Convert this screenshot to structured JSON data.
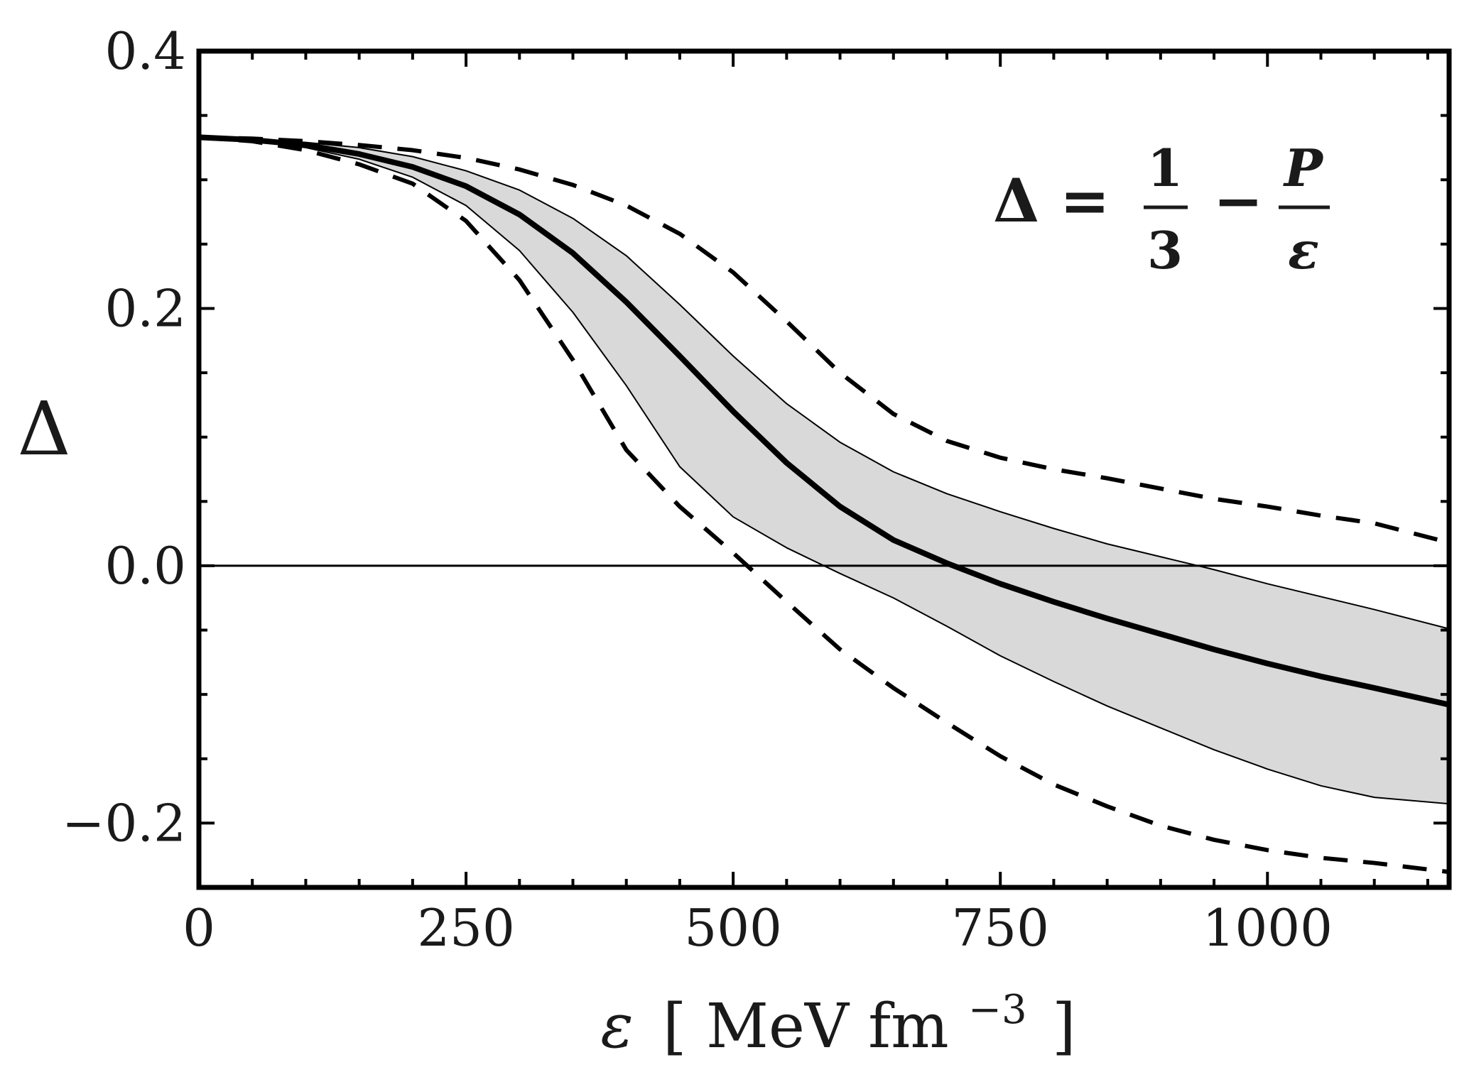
{
  "chart_data": {
    "type": "line",
    "title": "",
    "xlabel": {
      "symbol": "ε",
      "open": "[",
      "unit": "MeV fm",
      "exp": "−3",
      "close": "]"
    },
    "ylabel": "Δ",
    "xlim": [
      0,
      1170
    ],
    "ylim": [
      -0.25,
      0.4
    ],
    "x_ticks": [
      0,
      250,
      500,
      750,
      1000
    ],
    "x_tick_labels": [
      "0",
      "250",
      "500",
      "750",
      "1000"
    ],
    "y_ticks": [
      -0.2,
      0.0,
      0.2,
      0.4
    ],
    "y_tick_labels": [
      "−0.2",
      "0.0",
      "0.2",
      "0.4"
    ],
    "annotation": {
      "lhs": "Δ",
      "eq": "=",
      "num1": "1",
      "den1": "3",
      "minus": "−",
      "num2": "P",
      "den2": "ε"
    },
    "x": [
      0,
      50,
      100,
      150,
      200,
      250,
      300,
      350,
      400,
      450,
      500,
      550,
      600,
      650,
      700,
      750,
      800,
      850,
      900,
      950,
      1000,
      1050,
      1100,
      1170
    ],
    "series": [
      {
        "name": "central",
        "style": "solid-thick",
        "values": [
          0.333,
          0.331,
          0.327,
          0.32,
          0.31,
          0.295,
          0.273,
          0.243,
          0.205,
          0.163,
          0.12,
          0.08,
          0.046,
          0.02,
          0.002,
          -0.014,
          -0.028,
          -0.041,
          -0.053,
          -0.065,
          -0.076,
          -0.086,
          -0.095,
          -0.108
        ]
      },
      {
        "name": "band-upper",
        "style": "thin",
        "values": [
          0.333,
          0.332,
          0.329,
          0.325,
          0.318,
          0.307,
          0.292,
          0.27,
          0.241,
          0.203,
          0.163,
          0.126,
          0.096,
          0.073,
          0.056,
          0.042,
          0.029,
          0.017,
          0.007,
          -0.003,
          -0.014,
          -0.024,
          -0.034,
          -0.049
        ]
      },
      {
        "name": "band-lower",
        "style": "thin",
        "values": [
          0.333,
          0.33,
          0.325,
          0.316,
          0.302,
          0.28,
          0.245,
          0.197,
          0.14,
          0.077,
          0.038,
          0.014,
          -0.006,
          -0.025,
          -0.047,
          -0.07,
          -0.09,
          -0.109,
          -0.126,
          -0.143,
          -0.158,
          -0.171,
          -0.18,
          -0.185
        ]
      },
      {
        "name": "dashed-upper",
        "style": "dashed",
        "values": [
          0.333,
          0.332,
          0.33,
          0.327,
          0.323,
          0.317,
          0.308,
          0.296,
          0.28,
          0.258,
          0.228,
          0.19,
          0.15,
          0.118,
          0.097,
          0.084,
          0.075,
          0.068,
          0.06,
          0.052,
          0.046,
          0.039,
          0.033,
          0.018
        ]
      },
      {
        "name": "dashed-lower",
        "style": "dashed",
        "values": [
          0.333,
          0.33,
          0.323,
          0.312,
          0.297,
          0.268,
          0.222,
          0.16,
          0.09,
          0.046,
          0.01,
          -0.028,
          -0.065,
          -0.095,
          -0.122,
          -0.148,
          -0.17,
          -0.187,
          -0.202,
          -0.213,
          -0.221,
          -0.227,
          -0.231,
          -0.238
        ]
      }
    ]
  }
}
